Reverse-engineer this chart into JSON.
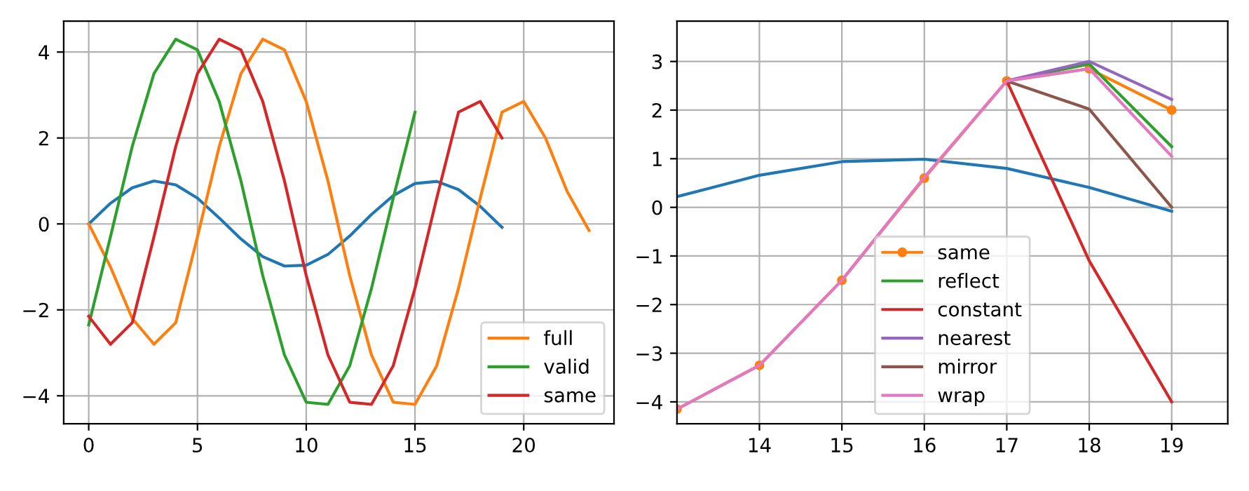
{
  "chart_data": [
    {
      "type": "line",
      "xlim": [
        -1.15,
        24.15
      ],
      "ylim": [
        -4.65,
        4.72
      ],
      "xticks": [
        0,
        5,
        10,
        15,
        20
      ],
      "yticks": [
        {
          "value": -4,
          "label": "−4"
        },
        {
          "value": -2,
          "label": "−2"
        },
        0,
        2,
        4
      ],
      "grid": true,
      "legend": "bottom right",
      "series": [
        {
          "color": "#1f77b4",
          "x": [
            0,
            1,
            2,
            3,
            4,
            5,
            6,
            7,
            8,
            9,
            10,
            11,
            12,
            13,
            14,
            15,
            16,
            17,
            18,
            19
          ],
          "values": [
            0,
            0.48,
            0.84,
            1.0,
            0.91,
            0.6,
            0.14,
            -0.35,
            -0.76,
            -0.98,
            -0.96,
            -0.71,
            -0.28,
            0.22,
            0.66,
            0.94,
            0.99,
            0.8,
            0.41,
            -0.08
          ]
        },
        {
          "name": "full",
          "color": "#ff7f0e",
          "x": [
            0,
            1,
            2,
            3,
            4,
            5,
            6,
            7,
            8,
            9,
            10,
            11,
            12,
            13,
            14,
            15,
            16,
            17,
            18,
            19,
            20,
            21,
            22,
            23
          ],
          "values": [
            0,
            -1.0,
            -2.2,
            -2.8,
            -2.3,
            -0.3,
            1.8,
            3.5,
            4.3,
            4.05,
            2.85,
            1.0,
            -1.2,
            -3.05,
            -4.15,
            -4.2,
            -3.3,
            -1.5,
            0.6,
            2.6,
            2.85,
            2.0,
            0.75,
            -0.15
          ]
        },
        {
          "name": "valid",
          "color": "#2ca02c",
          "x": [
            0,
            1,
            2,
            3,
            4,
            5,
            6,
            7,
            8,
            9,
            10,
            11,
            12,
            13,
            14,
            15
          ],
          "values": [
            -2.35,
            -0.3,
            1.8,
            3.5,
            4.3,
            4.05,
            2.85,
            1.0,
            -1.2,
            -3.05,
            -4.15,
            -4.2,
            -3.3,
            -1.5,
            0.6,
            2.6
          ]
        },
        {
          "name": "same",
          "color": "#d62728",
          "x": [
            0,
            1,
            2,
            3,
            4,
            5,
            6,
            7,
            8,
            9,
            10,
            11,
            12,
            13,
            14,
            15,
            16,
            17,
            18,
            19
          ],
          "values": [
            -2.15,
            -2.8,
            -2.3,
            -0.3,
            1.8,
            3.5,
            4.3,
            4.05,
            2.85,
            1.0,
            -1.2,
            -3.05,
            -4.15,
            -4.2,
            -3.3,
            -1.5,
            0.6,
            2.6,
            2.85,
            2.0
          ]
        }
      ]
    },
    {
      "type": "line",
      "xlim": [
        13.0,
        19.68
      ],
      "ylim": [
        -4.45,
        3.83
      ],
      "xticks": [
        14,
        15,
        16,
        17,
        18,
        19
      ],
      "yticks": [
        {
          "value": -4,
          "label": "−4"
        },
        {
          "value": -3,
          "label": "−3"
        },
        {
          "value": -2,
          "label": "−2"
        },
        {
          "value": -1,
          "label": "−1"
        },
        0,
        1,
        2,
        3
      ],
      "grid": true,
      "legend": "bottom",
      "series": [
        {
          "color": "#1f77b4",
          "x": [
            13,
            14,
            15,
            16,
            17,
            18,
            19
          ],
          "values": [
            0.22,
            0.66,
            0.94,
            0.99,
            0.8,
            0.41,
            -0.08
          ]
        },
        {
          "name": "same",
          "color": "#ff7f0e",
          "marker": "circle",
          "x": [
            13,
            14,
            15,
            16,
            17,
            18,
            19
          ],
          "values": [
            -4.15,
            -3.25,
            -1.5,
            0.6,
            2.6,
            2.85,
            2.0
          ]
        },
        {
          "name": "reflect",
          "color": "#2ca02c",
          "x": [
            17,
            18,
            19
          ],
          "values": [
            2.6,
            2.95,
            1.25
          ]
        },
        {
          "name": "constant",
          "color": "#d62728",
          "x": [
            17,
            18,
            19
          ],
          "values": [
            2.6,
            -1.1,
            -4.0
          ]
        },
        {
          "name": "nearest",
          "color": "#9467bd",
          "x": [
            17,
            18,
            19
          ],
          "values": [
            2.6,
            3.0,
            2.22
          ]
        },
        {
          "name": "mirror",
          "color": "#8c564b",
          "x": [
            17,
            18,
            19
          ],
          "values": [
            2.6,
            2.02,
            0.0
          ]
        },
        {
          "name": "wrap",
          "color": "#e377c2",
          "x": [
            13,
            14,
            15,
            16,
            17,
            18,
            19
          ],
          "values": [
            -4.15,
            -3.25,
            -1.5,
            0.62,
            2.6,
            2.85,
            1.05
          ]
        }
      ]
    }
  ]
}
